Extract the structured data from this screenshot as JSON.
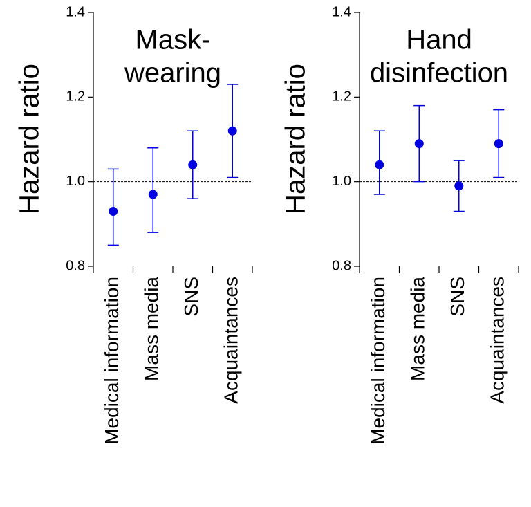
{
  "chart_data": [
    {
      "type": "errorbar",
      "title": [
        "Mask-",
        "wearing"
      ],
      "ylabel": "Hazard ratio",
      "categories": [
        "Medical information",
        "Mass media",
        "SNS",
        "Acquaintances"
      ],
      "values": [
        0.93,
        0.97,
        1.04,
        1.12
      ],
      "lower": [
        0.85,
        0.88,
        0.96,
        1.01
      ],
      "upper": [
        1.03,
        1.08,
        1.12,
        1.23
      ],
      "color": "#0000e0",
      "ylim": [
        0.8,
        1.4
      ],
      "yticks": [
        {
          "value": 0.8,
          "label": "0.8"
        },
        {
          "value": 1.0,
          "label": "1.0"
        },
        {
          "value": 1.2,
          "label": "1.2"
        },
        {
          "value": 1.4,
          "label": "1.4"
        }
      ],
      "reference_line": 1
    },
    {
      "type": "errorbar",
      "title": [
        "Hand",
        "disinfection"
      ],
      "ylabel": "Hazard ratio",
      "categories": [
        "Medical information",
        "Mass media",
        "SNS",
        "Acquaintances"
      ],
      "values": [
        1.04,
        1.09,
        0.99,
        1.09
      ],
      "lower": [
        0.97,
        1.0,
        0.93,
        1.01
      ],
      "upper": [
        1.12,
        1.18,
        1.05,
        1.17
      ],
      "color": "#0000e0",
      "ylim": [
        0.8,
        1.4
      ],
      "yticks": [
        {
          "value": 0.8,
          "label": "0.8"
        },
        {
          "value": 1.0,
          "label": "1.0"
        },
        {
          "value": 1.2,
          "label": "1.2"
        },
        {
          "value": 1.4,
          "label": "1.4"
        }
      ],
      "reference_line": 1
    }
  ]
}
